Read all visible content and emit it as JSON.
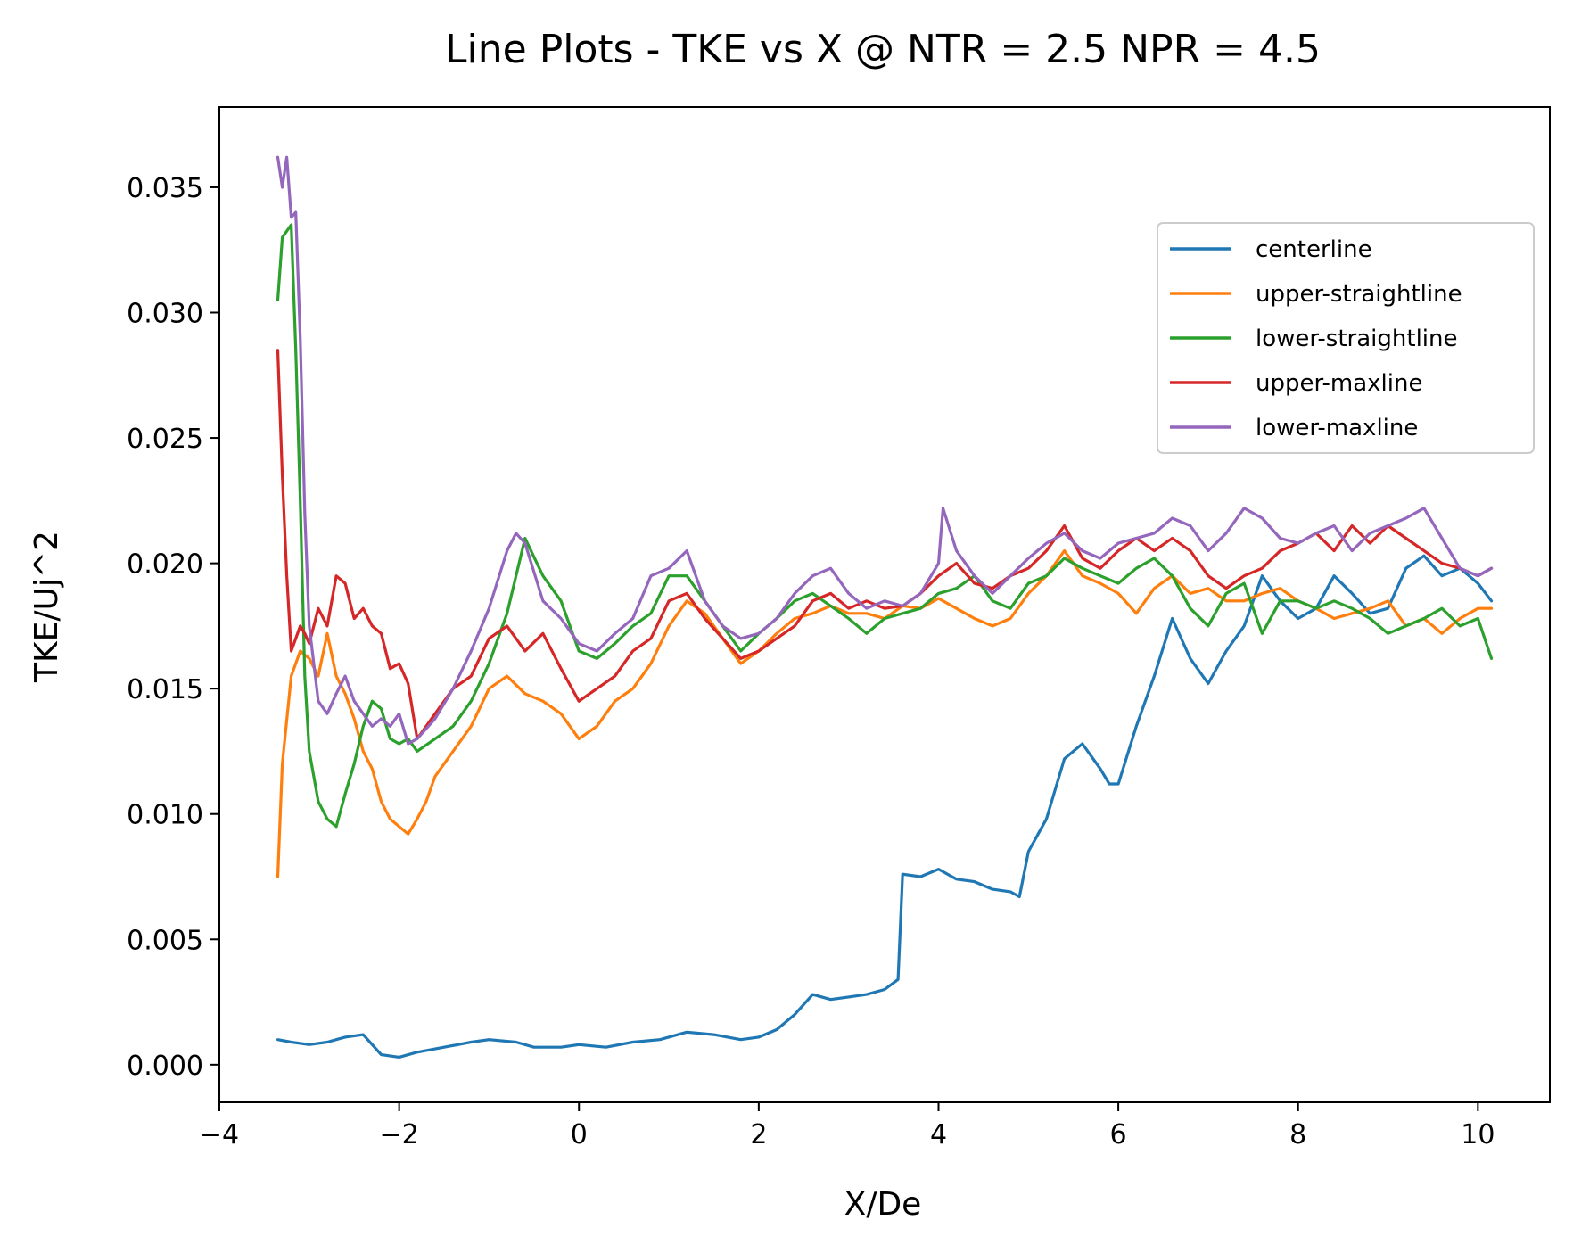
{
  "chart_data": {
    "type": "line",
    "title": "Line Plots - TKE vs X @ NTR = 2.5 NPR = 4.5",
    "xlabel": "X/De",
    "ylabel": "TKE/Uj^2",
    "xlim": [
      -4,
      10.8
    ],
    "ylim": [
      -0.0015,
      0.0382
    ],
    "xticks": [
      -4,
      -2,
      0,
      2,
      4,
      6,
      8,
      10
    ],
    "xtick_labels": [
      "−4",
      "−2",
      "0",
      "2",
      "4",
      "6",
      "8",
      "10"
    ],
    "yticks": [
      0.0,
      0.005,
      0.01,
      0.015,
      0.02,
      0.025,
      0.03,
      0.035
    ],
    "ytick_labels": [
      "0.000",
      "0.005",
      "0.010",
      "0.015",
      "0.020",
      "0.025",
      "0.030",
      "0.035"
    ],
    "grid": false,
    "legend_position": "upper-right",
    "series": [
      {
        "name": "centerline",
        "color": "#1f77b4",
        "x": [
          -3.35,
          -3.2,
          -3.0,
          -2.8,
          -2.6,
          -2.4,
          -2.3,
          -2.2,
          -2.0,
          -1.8,
          -1.5,
          -1.2,
          -1.0,
          -0.7,
          -0.5,
          -0.2,
          0.0,
          0.3,
          0.6,
          0.9,
          1.2,
          1.5,
          1.8,
          2.0,
          2.2,
          2.4,
          2.6,
          2.8,
          3.0,
          3.2,
          3.4,
          3.55,
          3.6,
          3.8,
          4.0,
          4.2,
          4.4,
          4.6,
          4.8,
          4.9,
          5.0,
          5.2,
          5.4,
          5.5,
          5.6,
          5.8,
          5.9,
          6.0,
          6.2,
          6.4,
          6.6,
          6.8,
          7.0,
          7.2,
          7.4,
          7.6,
          7.8,
          8.0,
          8.2,
          8.4,
          8.6,
          8.8,
          9.0,
          9.2,
          9.4,
          9.6,
          9.8,
          10.0,
          10.15
        ],
        "y": [
          0.001,
          0.0009,
          0.0008,
          0.0009,
          0.0011,
          0.0012,
          0.0008,
          0.0004,
          0.0003,
          0.0005,
          0.0007,
          0.0009,
          0.001,
          0.0009,
          0.0007,
          0.0007,
          0.0008,
          0.0007,
          0.0009,
          0.001,
          0.0013,
          0.0012,
          0.001,
          0.0011,
          0.0014,
          0.002,
          0.0028,
          0.0026,
          0.0027,
          0.0028,
          0.003,
          0.0034,
          0.0076,
          0.0075,
          0.0078,
          0.0074,
          0.0073,
          0.007,
          0.0069,
          0.0067,
          0.0085,
          0.0098,
          0.0122,
          0.0125,
          0.0128,
          0.0118,
          0.0112,
          0.0112,
          0.0135,
          0.0155,
          0.0178,
          0.0162,
          0.0152,
          0.0165,
          0.0175,
          0.0195,
          0.0185,
          0.0178,
          0.0182,
          0.0195,
          0.0188,
          0.018,
          0.0182,
          0.0198,
          0.0203,
          0.0195,
          0.0198,
          0.0192,
          0.0185
        ]
      },
      {
        "name": "upper-straightline",
        "color": "#ff7f0e",
        "x": [
          -3.35,
          -3.3,
          -3.2,
          -3.1,
          -3.0,
          -2.9,
          -2.8,
          -2.7,
          -2.6,
          -2.5,
          -2.4,
          -2.3,
          -2.2,
          -2.1,
          -2.0,
          -1.9,
          -1.8,
          -1.7,
          -1.6,
          -1.4,
          -1.2,
          -1.0,
          -0.8,
          -0.6,
          -0.4,
          -0.2,
          0.0,
          0.2,
          0.4,
          0.6,
          0.8,
          1.0,
          1.2,
          1.4,
          1.6,
          1.8,
          2.0,
          2.2,
          2.4,
          2.6,
          2.8,
          3.0,
          3.2,
          3.4,
          3.6,
          3.8,
          4.0,
          4.2,
          4.4,
          4.6,
          4.8,
          5.0,
          5.2,
          5.4,
          5.6,
          5.8,
          6.0,
          6.2,
          6.4,
          6.6,
          6.8,
          7.0,
          7.2,
          7.4,
          7.6,
          7.8,
          8.0,
          8.2,
          8.4,
          8.6,
          8.8,
          9.0,
          9.2,
          9.4,
          9.6,
          9.8,
          10.0,
          10.15
        ],
        "y": [
          0.0075,
          0.012,
          0.0155,
          0.0165,
          0.0162,
          0.0155,
          0.0172,
          0.0155,
          0.0148,
          0.0138,
          0.0125,
          0.0118,
          0.0105,
          0.0098,
          0.0095,
          0.0092,
          0.0098,
          0.0105,
          0.0115,
          0.0125,
          0.0135,
          0.015,
          0.0155,
          0.0148,
          0.0145,
          0.014,
          0.013,
          0.0135,
          0.0145,
          0.015,
          0.016,
          0.0175,
          0.0185,
          0.018,
          0.017,
          0.016,
          0.0165,
          0.0172,
          0.0178,
          0.018,
          0.0183,
          0.018,
          0.018,
          0.0178,
          0.0183,
          0.0182,
          0.0186,
          0.0182,
          0.0178,
          0.0175,
          0.0178,
          0.0188,
          0.0195,
          0.0205,
          0.0195,
          0.0192,
          0.0188,
          0.018,
          0.019,
          0.0195,
          0.0188,
          0.019,
          0.0185,
          0.0185,
          0.0188,
          0.019,
          0.0185,
          0.0182,
          0.0178,
          0.018,
          0.0182,
          0.0185,
          0.0175,
          0.0178,
          0.0172,
          0.0178,
          0.0182,
          0.0182
        ]
      },
      {
        "name": "lower-straightline",
        "color": "#2ca02c",
        "x": [
          -3.35,
          -3.3,
          -3.2,
          -3.15,
          -3.1,
          -3.05,
          -3.0,
          -2.95,
          -2.9,
          -2.8,
          -2.7,
          -2.6,
          -2.5,
          -2.4,
          -2.3,
          -2.2,
          -2.1,
          -2.0,
          -1.9,
          -1.8,
          -1.6,
          -1.4,
          -1.2,
          -1.0,
          -0.8,
          -0.6,
          -0.4,
          -0.2,
          0.0,
          0.2,
          0.4,
          0.6,
          0.8,
          1.0,
          1.2,
          1.4,
          1.6,
          1.8,
          2.0,
          2.2,
          2.4,
          2.6,
          2.8,
          3.0,
          3.2,
          3.4,
          3.6,
          3.8,
          4.0,
          4.2,
          4.4,
          4.6,
          4.8,
          5.0,
          5.2,
          5.4,
          5.6,
          5.8,
          6.0,
          6.2,
          6.4,
          6.6,
          6.8,
          7.0,
          7.2,
          7.4,
          7.6,
          7.8,
          8.0,
          8.2,
          8.4,
          8.6,
          8.8,
          9.0,
          9.2,
          9.4,
          9.6,
          9.8,
          10.0,
          10.15
        ],
        "y": [
          0.0305,
          0.033,
          0.0335,
          0.0285,
          0.0225,
          0.0155,
          0.0125,
          0.0115,
          0.0105,
          0.0098,
          0.0095,
          0.0108,
          0.012,
          0.0135,
          0.0145,
          0.0142,
          0.013,
          0.0128,
          0.013,
          0.0125,
          0.013,
          0.0135,
          0.0145,
          0.016,
          0.018,
          0.021,
          0.0195,
          0.0185,
          0.0165,
          0.0162,
          0.0168,
          0.0175,
          0.018,
          0.0195,
          0.0195,
          0.0185,
          0.0175,
          0.0165,
          0.0172,
          0.0178,
          0.0185,
          0.0188,
          0.0183,
          0.0178,
          0.0172,
          0.0178,
          0.018,
          0.0182,
          0.0188,
          0.019,
          0.0195,
          0.0185,
          0.0182,
          0.0192,
          0.0195,
          0.0202,
          0.0198,
          0.0195,
          0.0192,
          0.0198,
          0.0202,
          0.0195,
          0.0182,
          0.0175,
          0.0188,
          0.0192,
          0.0172,
          0.0185,
          0.0185,
          0.0182,
          0.0185,
          0.0182,
          0.0178,
          0.0172,
          0.0175,
          0.0178,
          0.0182,
          0.0175,
          0.0178,
          0.0162
        ]
      },
      {
        "name": "upper-maxline",
        "color": "#d62728",
        "x": [
          -3.35,
          -3.3,
          -3.25,
          -3.2,
          -3.15,
          -3.1,
          -3.05,
          -3.0,
          -2.9,
          -2.8,
          -2.7,
          -2.6,
          -2.5,
          -2.4,
          -2.3,
          -2.2,
          -2.1,
          -2.0,
          -1.9,
          -1.8,
          -1.7,
          -1.6,
          -1.4,
          -1.2,
          -1.0,
          -0.8,
          -0.6,
          -0.4,
          -0.2,
          0.0,
          0.2,
          0.4,
          0.6,
          0.8,
          1.0,
          1.2,
          1.4,
          1.6,
          1.8,
          2.0,
          2.2,
          2.4,
          2.6,
          2.8,
          3.0,
          3.2,
          3.4,
          3.6,
          3.8,
          4.0,
          4.2,
          4.4,
          4.6,
          4.8,
          5.0,
          5.2,
          5.4,
          5.6,
          5.8,
          6.0,
          6.2,
          6.4,
          6.6,
          6.8,
          7.0,
          7.2,
          7.4,
          7.6,
          7.8,
          8.0,
          8.2,
          8.4,
          8.6,
          8.8,
          9.0,
          9.2,
          9.4,
          9.6,
          9.8,
          10.0,
          10.15
        ],
        "y": [
          0.0285,
          0.0235,
          0.0195,
          0.0165,
          0.017,
          0.0175,
          0.0172,
          0.0168,
          0.0182,
          0.0175,
          0.0195,
          0.0192,
          0.0178,
          0.0182,
          0.0175,
          0.0172,
          0.0158,
          0.016,
          0.0152,
          0.013,
          0.0135,
          0.014,
          0.015,
          0.0155,
          0.017,
          0.0175,
          0.0165,
          0.0172,
          0.0158,
          0.0145,
          0.015,
          0.0155,
          0.0165,
          0.017,
          0.0185,
          0.0188,
          0.0178,
          0.017,
          0.0162,
          0.0165,
          0.017,
          0.0175,
          0.0185,
          0.0188,
          0.0182,
          0.0185,
          0.0182,
          0.0183,
          0.0188,
          0.0195,
          0.02,
          0.0192,
          0.019,
          0.0195,
          0.0198,
          0.0205,
          0.0215,
          0.0202,
          0.0198,
          0.0205,
          0.021,
          0.0205,
          0.021,
          0.0205,
          0.0195,
          0.019,
          0.0195,
          0.0198,
          0.0205,
          0.0208,
          0.0212,
          0.0205,
          0.0215,
          0.0208,
          0.0215,
          0.021,
          0.0205,
          0.02,
          0.0198,
          0.0195,
          0.0198
        ]
      },
      {
        "name": "lower-maxline",
        "color": "#9467bd",
        "x": [
          -3.35,
          -3.3,
          -3.25,
          -3.2,
          -3.15,
          -3.1,
          -3.05,
          -3.0,
          -2.95,
          -2.9,
          -2.8,
          -2.7,
          -2.6,
          -2.5,
          -2.4,
          -2.3,
          -2.2,
          -2.1,
          -2.0,
          -1.9,
          -1.8,
          -1.6,
          -1.4,
          -1.2,
          -1.0,
          -0.8,
          -0.7,
          -0.6,
          -0.4,
          -0.2,
          0.0,
          0.2,
          0.4,
          0.6,
          0.8,
          1.0,
          1.2,
          1.4,
          1.6,
          1.8,
          2.0,
          2.2,
          2.4,
          2.6,
          2.8,
          3.0,
          3.2,
          3.4,
          3.6,
          3.8,
          4.0,
          4.05,
          4.2,
          4.4,
          4.6,
          4.8,
          5.0,
          5.2,
          5.4,
          5.6,
          5.8,
          6.0,
          6.2,
          6.4,
          6.6,
          6.8,
          7.0,
          7.2,
          7.4,
          7.6,
          7.8,
          8.0,
          8.2,
          8.4,
          8.6,
          8.8,
          9.0,
          9.2,
          9.4,
          9.6,
          9.8,
          10.0,
          10.15
        ],
        "y": [
          0.0362,
          0.035,
          0.0362,
          0.0338,
          0.034,
          0.029,
          0.022,
          0.0175,
          0.016,
          0.0145,
          0.014,
          0.0148,
          0.0155,
          0.0145,
          0.014,
          0.0135,
          0.0138,
          0.0135,
          0.014,
          0.0128,
          0.013,
          0.0138,
          0.015,
          0.0165,
          0.0182,
          0.0205,
          0.0212,
          0.0208,
          0.0185,
          0.0178,
          0.0168,
          0.0165,
          0.0172,
          0.0178,
          0.0195,
          0.0198,
          0.0205,
          0.0185,
          0.0175,
          0.017,
          0.0172,
          0.0178,
          0.0188,
          0.0195,
          0.0198,
          0.0188,
          0.0182,
          0.0185,
          0.0183,
          0.0188,
          0.02,
          0.0222,
          0.0205,
          0.0195,
          0.0188,
          0.0195,
          0.0202,
          0.0208,
          0.0212,
          0.0205,
          0.0202,
          0.0208,
          0.021,
          0.0212,
          0.0218,
          0.0215,
          0.0205,
          0.0212,
          0.0222,
          0.0218,
          0.021,
          0.0208,
          0.0212,
          0.0215,
          0.0205,
          0.0212,
          0.0215,
          0.0218,
          0.0222,
          0.021,
          0.0198,
          0.0195,
          0.0198
        ]
      }
    ]
  }
}
